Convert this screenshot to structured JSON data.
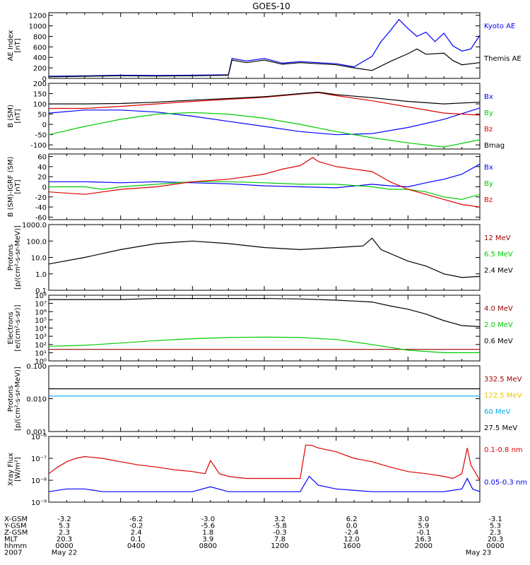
{
  "title": "GOES-10",
  "colors": {
    "black": "#000000",
    "blue": "#0000ff",
    "green": "#00cc00",
    "red": "#dd0000",
    "darkred": "#990000",
    "cyan": "#00aaee",
    "yellow": "#e8c800"
  },
  "chart_data": [
    {
      "type": "line",
      "scale": "linear",
      "ylabel": "AE Index\n[nT]",
      "ylim": [
        0,
        1250
      ],
      "yticks": [
        0,
        200,
        400,
        600,
        800,
        1000,
        1200
      ],
      "yticklabels": [
        "0",
        "200",
        "400",
        "600",
        "800",
        "1000",
        "1200"
      ],
      "series": [
        {
          "name": "Kyoto AE",
          "color": "#0000ff",
          "x": [
            0,
            2,
            4,
            6,
            8,
            10,
            10.2,
            11,
            12,
            13,
            14,
            15,
            16,
            17,
            18,
            18.5,
            19,
            19.5,
            20,
            20.5,
            21,
            21.5,
            22,
            22.5,
            23,
            23.5,
            24
          ],
          "y": [
            40,
            50,
            60,
            55,
            60,
            70,
            380,
            330,
            380,
            290,
            320,
            300,
            280,
            220,
            420,
            700,
            900,
            1120,
            950,
            800,
            880,
            700,
            860,
            620,
            520,
            560,
            820
          ]
        },
        {
          "name": "Themis AE",
          "color": "#000000",
          "x": [
            0,
            2,
            4,
            6,
            8,
            10,
            10.2,
            11,
            12,
            13,
            14,
            15,
            16,
            17,
            18,
            19,
            20,
            20.5,
            21,
            22,
            22.5,
            23,
            24
          ],
          "y": [
            30,
            40,
            50,
            45,
            50,
            60,
            350,
            300,
            350,
            270,
            300,
            280,
            260,
            200,
            150,
            320,
            470,
            560,
            460,
            480,
            340,
            260,
            300
          ]
        }
      ]
    },
    {
      "type": "line",
      "scale": "linear",
      "ylabel": "B (SM)\n[nT]",
      "ylim": [
        -120,
        200
      ],
      "yticks": [
        -100,
        -50,
        0,
        50,
        100,
        150,
        200
      ],
      "yticklabels": [
        "-100",
        "-50",
        "0",
        "50",
        "100",
        "150",
        "200"
      ],
      "series": [
        {
          "name": "Bx",
          "color": "#0000ff",
          "x": [
            0,
            2,
            4,
            6,
            8,
            10,
            12,
            14,
            16,
            18,
            20,
            22,
            24
          ],
          "y": [
            55,
            70,
            70,
            60,
            40,
            15,
            -10,
            -35,
            -50,
            -45,
            -15,
            25,
            80
          ]
        },
        {
          "name": "By",
          "color": "#00cc00",
          "x": [
            0,
            2,
            4,
            6,
            8,
            10,
            12,
            14,
            16,
            18,
            20,
            22,
            24
          ],
          "y": [
            -50,
            -10,
            25,
            50,
            58,
            50,
            30,
            0,
            -35,
            -65,
            -90,
            -110,
            -75
          ]
        },
        {
          "name": "Bz",
          "color": "#dd0000",
          "x": [
            0,
            2,
            4,
            6,
            8,
            10,
            12,
            14,
            15,
            16,
            18,
            20,
            22,
            24
          ],
          "y": [
            78,
            78,
            88,
            100,
            112,
            122,
            132,
            148,
            155,
            140,
            115,
            85,
            55,
            45
          ]
        },
        {
          "name": "Bmag",
          "color": "#000000",
          "x": [
            0,
            2,
            4,
            6,
            8,
            10,
            12,
            14,
            15,
            16,
            18,
            20,
            22,
            24
          ],
          "y": [
            100,
            100,
            102,
            108,
            118,
            126,
            135,
            150,
            157,
            145,
            130,
            112,
            100,
            108
          ]
        }
      ]
    },
    {
      "type": "line",
      "scale": "linear",
      "ylabel": "B (SM)-IGRF (SM)\n[nT]",
      "ylim": [
        -65,
        65
      ],
      "yticks": [
        -60,
        -40,
        -20,
        0,
        20,
        40,
        60
      ],
      "yticklabels": [
        "-60",
        "-40",
        "-20",
        "0",
        "20",
        "40",
        "60"
      ],
      "series": [
        {
          "name": "Bx",
          "color": "#0000ff",
          "x": [
            0,
            2,
            4,
            6,
            8,
            10,
            12,
            14,
            16,
            18,
            19,
            20,
            21,
            22,
            23,
            24
          ],
          "y": [
            10,
            10,
            8,
            10,
            8,
            6,
            2,
            0,
            -2,
            5,
            2,
            0,
            8,
            15,
            25,
            45
          ]
        },
        {
          "name": "By",
          "color": "#00cc00",
          "x": [
            0,
            2,
            3,
            4,
            6,
            8,
            10,
            12,
            14,
            16,
            18,
            19,
            20,
            21,
            22,
            23,
            24
          ],
          "y": [
            0,
            0,
            -5,
            0,
            5,
            10,
            10,
            8,
            5,
            5,
            0,
            -5,
            -5,
            -10,
            -20,
            -25,
            -15
          ]
        },
        {
          "name": "Bz",
          "color": "#dd0000",
          "x": [
            0,
            2,
            4,
            6,
            8,
            10,
            12,
            13,
            14,
            14.7,
            15,
            16,
            18,
            19,
            20,
            21,
            22,
            23,
            24
          ],
          "y": [
            -10,
            -15,
            -5,
            0,
            10,
            15,
            25,
            35,
            42,
            58,
            50,
            40,
            30,
            10,
            -5,
            -15,
            -25,
            -35,
            -40
          ]
        }
      ]
    },
    {
      "type": "line",
      "scale": "log",
      "ylabel": "Protons\n[p/(cm²-s-sr-MeV)]",
      "ylim": [
        0.1,
        1000
      ],
      "yticks": [
        0.1,
        1,
        10,
        100,
        1000
      ],
      "yticklabels": [
        "0.1",
        "1.0",
        "10.0",
        "100.0",
        "1000.0"
      ],
      "series": [
        {
          "name": "12 MeV",
          "color": "#990000",
          "x": [],
          "y": []
        },
        {
          "name": "6.5 MeV",
          "color": "#00cc00",
          "x": [],
          "y": []
        },
        {
          "name": "2.4 MeV",
          "color": "#000000",
          "x": [
            0,
            2,
            4,
            6,
            8,
            10,
            12,
            14,
            16,
            17.5,
            18,
            18.5,
            20,
            21,
            22,
            23,
            24
          ],
          "y": [
            4,
            10,
            30,
            70,
            100,
            70,
            40,
            30,
            40,
            50,
            150,
            30,
            6,
            3,
            1,
            0.6,
            0.7
          ]
        }
      ]
    },
    {
      "type": "line",
      "scale": "log",
      "ylabel": "Electrons\n[e/(cm²-s-sr)]",
      "ylim": [
        1,
        100000000
      ],
      "yticks": [
        1,
        10,
        100,
        1000,
        10000,
        100000,
        1000000,
        10000000,
        100000000
      ],
      "yticklabels": [
        "10⁰",
        "10¹",
        "10²",
        "10³",
        "10⁴",
        "10⁵",
        "10⁶",
        "10⁷",
        "10⁸"
      ],
      "series": [
        {
          "name": "4.0 MeV",
          "color": "#990000",
          "x": [
            0,
            4,
            8,
            12,
            16,
            20,
            24
          ],
          "y": [
            25,
            25,
            25,
            25,
            25,
            25,
            25
          ]
        },
        {
          "name": "2.0 MeV",
          "color": "#00cc00",
          "x": [
            0,
            2,
            4,
            6,
            8,
            10,
            12,
            14,
            16,
            18,
            20,
            22,
            24
          ],
          "y": [
            60,
            80,
            150,
            300,
            500,
            700,
            800,
            700,
            400,
            100,
            20,
            10,
            10
          ]
        },
        {
          "name": "0.6 MeV",
          "color": "#000000",
          "x": [
            0,
            2,
            4,
            6,
            8,
            10,
            12,
            14,
            16,
            18,
            19,
            20,
            21,
            22,
            23,
            24
          ],
          "y": [
            30000000,
            30000000,
            30000000,
            40000000,
            40000000,
            40000000,
            40000000,
            35000000,
            25000000,
            15000000,
            5000000,
            2000000,
            500000,
            80000,
            20000,
            15000
          ]
        }
      ]
    },
    {
      "type": "line",
      "scale": "log",
      "ylabel": "Protons\n[p/(cm²-s-sr-MeV)]",
      "ylim": [
        0.001,
        0.1
      ],
      "yticks": [
        0.001,
        0.01,
        0.1
      ],
      "yticklabels": [
        "0.001",
        "0.010",
        "0.100"
      ],
      "series": [
        {
          "name": "332.5 MeV",
          "color": "#990000",
          "x": [],
          "y": []
        },
        {
          "name": "122.5 MeV",
          "color": "#e8c800",
          "x": [],
          "y": []
        },
        {
          "name": "60 MeV",
          "color": "#00aaee",
          "x": [
            0,
            24
          ],
          "y": [
            0.012,
            0.012
          ]
        },
        {
          "name": "27.5 MeV",
          "color": "#000000",
          "x": [
            0,
            24
          ],
          "y": [
            0.02,
            0.02
          ]
        }
      ]
    },
    {
      "type": "line",
      "scale": "log",
      "ylabel": "Xray Flux\n[W/m²]",
      "ylim": [
        1e-09,
        1e-06
      ],
      "yticks": [
        1e-09,
        1e-08,
        1e-07,
        1e-06
      ],
      "yticklabels": [
        "10⁻⁹",
        "10⁻⁸",
        "10⁻⁷",
        "10⁻⁶"
      ],
      "series": [
        {
          "name": "0.1-0.8 nm",
          "color": "#dd0000",
          "x": [
            0,
            0.5,
            1,
            1.5,
            2,
            3,
            4,
            5,
            6,
            7,
            8,
            8.7,
            9,
            9.5,
            10,
            11,
            12,
            13,
            14,
            14.3,
            14.6,
            15,
            16,
            17,
            18,
            19,
            20,
            21,
            22,
            22.5,
            23,
            23.3,
            23.5,
            24
          ],
          "y": [
            2e-08,
            4e-08,
            7e-08,
            1e-07,
            1.2e-07,
            1e-07,
            7e-08,
            5e-08,
            4e-08,
            3e-08,
            2.5e-08,
            2e-08,
            8e-08,
            2e-08,
            1.5e-08,
            1.2e-08,
            1.2e-08,
            1.2e-08,
            1.2e-08,
            4e-07,
            4e-07,
            3e-07,
            2e-07,
            1e-07,
            7e-08,
            4e-08,
            2.5e-08,
            2e-08,
            1.5e-08,
            1.2e-08,
            2e-08,
            3e-07,
            5e-08,
            1e-08
          ]
        },
        {
          "name": "0.05-0.3 nm",
          "color": "#0000ff",
          "x": [
            0,
            1,
            2,
            3,
            4,
            6,
            8,
            9,
            10,
            12,
            14,
            14.5,
            15,
            16,
            18,
            20,
            22,
            23,
            23.3,
            23.6,
            24
          ],
          "y": [
            3e-09,
            4e-09,
            4e-09,
            3e-09,
            3e-09,
            3e-09,
            3e-09,
            5e-09,
            3e-09,
            3e-09,
            3e-09,
            1.5e-08,
            6e-09,
            4e-09,
            3e-09,
            3e-09,
            3e-09,
            4e-09,
            1.2e-08,
            4e-09,
            3e-09
          ]
        }
      ]
    }
  ],
  "ephemeris": {
    "labels": [
      "X-GSM",
      "Y-GSM",
      "Z-GSM",
      "MLT",
      "hhmm",
      "2007"
    ],
    "times": [
      0,
      4,
      8,
      12,
      16,
      20,
      24
    ],
    "rows": [
      [
        "-3.2",
        "-6.2",
        "-3.0",
        "3.2",
        "6.2",
        "3.0",
        "-3.1"
      ],
      [
        "5.3",
        "-0.2",
        "-5.6",
        "-5.8",
        "0.0",
        "5.9",
        "5.3"
      ],
      [
        "2.3",
        "2.4",
        "1.8",
        "-0.3",
        "-2.4",
        "-0.1",
        "2.3"
      ],
      [
        "20.3",
        "0.1",
        "3.9",
        "7.8",
        "12.0",
        "16.3",
        "20.3"
      ],
      [
        "0000",
        "0400",
        "0800",
        "1200",
        "1600",
        "2000",
        "0000"
      ]
    ],
    "dates": [
      "May 22",
      "May 23"
    ]
  }
}
